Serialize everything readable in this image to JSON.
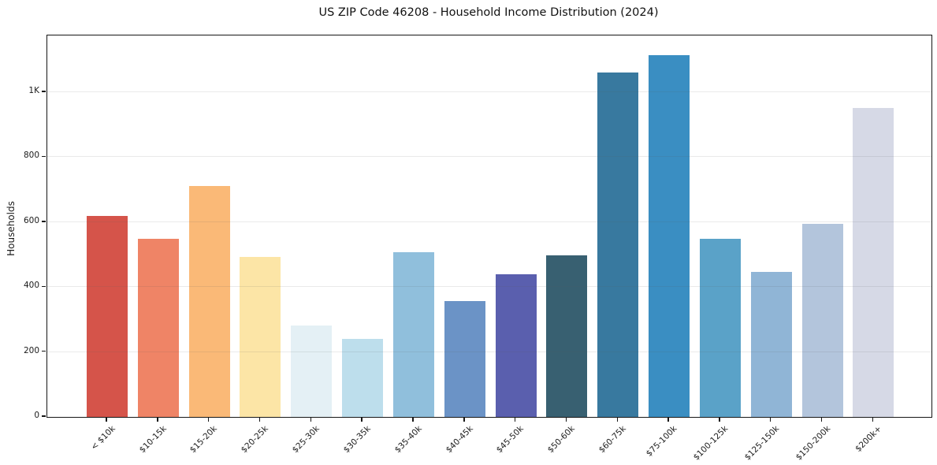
{
  "figure": {
    "title": "US ZIP Code 46208 - Household Income Distribution (2024)"
  },
  "chart_data": {
    "type": "bar",
    "title": "US ZIP Code 46208 - Household Income Distribution (2024)",
    "xlabel": "",
    "ylabel": "Households",
    "categories": [
      "< $10k",
      "$10-15k",
      "$15-20k",
      "$20-25k",
      "$25-30k",
      "$30-35k",
      "$35-40k",
      "$40-45k",
      "$45-50k",
      "$50-60k",
      "$60-75k",
      "$75-100k",
      "$100-125k",
      "$125-150k",
      "$150-200k",
      "$200k+"
    ],
    "values": [
      618,
      548,
      711,
      493,
      282,
      241,
      507,
      357,
      440,
      497,
      1060,
      1115,
      548,
      446,
      594,
      952
    ],
    "bar_colors": [
      "#d5544a",
      "#ef8466",
      "#fab977",
      "#fce5a6",
      "#e4f0f5",
      "#bddeec",
      "#90bfdc",
      "#6b93c6",
      "#5a5fae",
      "#386071",
      "#38799f",
      "#3a8ec2",
      "#5aa2c8",
      "#90b5d6",
      "#b3c5dc",
      "#d6d9e6"
    ],
    "ytick_values": [
      0,
      200,
      400,
      600,
      800,
      1000
    ],
    "ytick_labels": [
      "0",
      "200",
      "400",
      "600",
      "800",
      "1K"
    ],
    "ylim": [
      0,
      1175
    ],
    "grid": "horizontal-only",
    "grid_over_bars": true,
    "legend": "none",
    "x_tick_rotation_deg": 45,
    "plot_border_color": "#161616",
    "background_color": "#ffffff"
  }
}
